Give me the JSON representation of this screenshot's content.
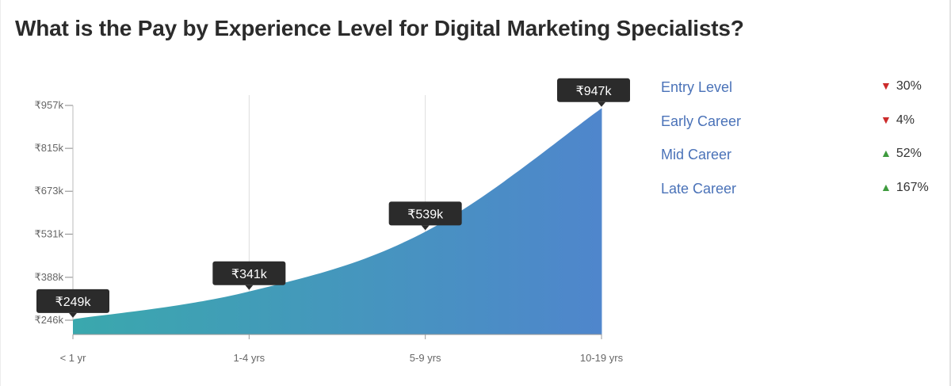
{
  "title": "What is the Pay by Experience Level for Digital Marketing Specialists?",
  "chart_data": {
    "type": "area",
    "categories": [
      "< 1 yr",
      "1-4 yrs",
      "5-9 yrs",
      "10-19 yrs"
    ],
    "values": [
      249,
      341,
      539,
      947
    ],
    "value_labels": [
      "₹249k",
      "₹341k",
      "₹539k",
      "₹947k"
    ],
    "y_ticks": [
      {
        "value": 246,
        "label": "₹246k"
      },
      {
        "value": 388,
        "label": "₹388k"
      },
      {
        "value": 531,
        "label": "₹531k"
      },
      {
        "value": 673,
        "label": "₹673k"
      },
      {
        "value": 815,
        "label": "₹815k"
      },
      {
        "value": 957,
        "label": "₹957k"
      }
    ],
    "unit": "₹ thousands",
    "ylim": [
      246,
      957
    ],
    "grid": "vertical",
    "gradient_colors": [
      "#3aa8ad",
      "#4f86cc"
    ]
  },
  "legend": {
    "items": [
      {
        "label": "Entry Level",
        "direction": "down",
        "change": "30%"
      },
      {
        "label": "Early Career",
        "direction": "down",
        "change": "4%"
      },
      {
        "label": "Mid Career",
        "direction": "up",
        "change": "52%"
      },
      {
        "label": "Late Career",
        "direction": "up",
        "change": "167%"
      }
    ]
  },
  "colors": {
    "tooltip_bg": "#2b2b2b",
    "legend_label": "#4a72b8",
    "arrow_down": "#cc2b2b",
    "arrow_up": "#3e9b3e"
  }
}
